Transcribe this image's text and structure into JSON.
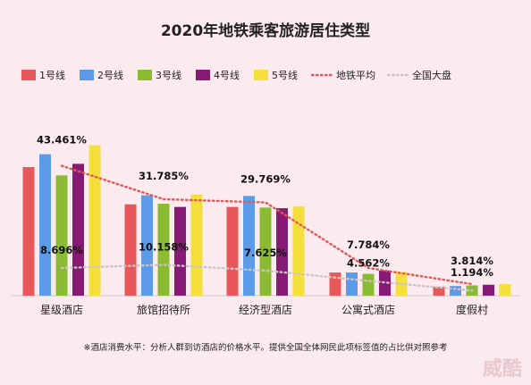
{
  "chart_data": {
    "type": "bar",
    "title": "2020年地铁乘客旅游居住类型",
    "categories": [
      "星级酒店",
      "旅馆招待所",
      "经济型酒店",
      "公寓式酒店",
      "度假村"
    ],
    "series": [
      {
        "name": "1号线",
        "color": "#e8585a",
        "values": [
          20.0,
          14.2,
          13.8,
          3.6,
          1.4
        ]
      },
      {
        "name": "2号线",
        "color": "#5b9be8",
        "values": [
          22.0,
          15.6,
          15.5,
          3.6,
          1.5
        ]
      },
      {
        "name": "3号线",
        "color": "#8bbb32",
        "values": [
          18.7,
          14.3,
          13.7,
          3.4,
          1.6
        ]
      },
      {
        "name": "4号线",
        "color": "#861a74",
        "values": [
          20.5,
          13.8,
          13.6,
          3.9,
          1.7
        ]
      },
      {
        "name": "5号线",
        "color": "#f5df3c",
        "values": [
          23.4,
          15.7,
          13.9,
          3.7,
          1.8
        ]
      }
    ],
    "lines": [
      {
        "name": "地铁平均",
        "color": "#e2575a",
        "style": "dotted",
        "values": [
          20.2,
          15.0,
          14.5,
          4.3,
          1.8
        ]
      },
      {
        "name": "全国大盘",
        "color": "#cbc4c7",
        "style": "dotted",
        "values": [
          4.3,
          4.8,
          3.9,
          2.3,
          0.8
        ]
      }
    ],
    "annotations": [
      {
        "category": 0,
        "top": "43.461%",
        "bottom": "8.696%"
      },
      {
        "category": 1,
        "top": "31.785%",
        "bottom": "10.158%"
      },
      {
        "category": 2,
        "top": "29.769%",
        "bottom": "7.625%"
      },
      {
        "category": 3,
        "top": "7.784%",
        "bottom": "4.562%"
      },
      {
        "category": 4,
        "top": "3.814%",
        "bottom": "1.194%"
      }
    ],
    "ylim": [
      0,
      25
    ],
    "grid": false,
    "legend_position": "top",
    "footnote": "※酒店消费水平：分析人群到访酒店的价格水平。提供全国全体网民此项标签值的占比供对照参考",
    "watermark": "威酷"
  }
}
